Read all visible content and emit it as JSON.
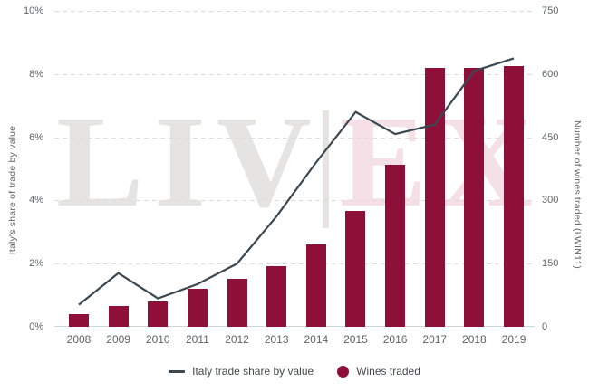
{
  "watermark": {
    "letters": [
      {
        "ch": "L",
        "tone": "gray"
      },
      {
        "ch": "I",
        "tone": "gray"
      },
      {
        "ch": "V",
        "tone": "gray"
      },
      {
        "ch": "|",
        "tone": "separator"
      },
      {
        "ch": "E",
        "tone": "pink"
      },
      {
        "ch": "X",
        "tone": "pink"
      }
    ]
  },
  "legend": {
    "line_label": "Italy trade share by value",
    "bar_label": "Wines traded"
  },
  "chart_data": {
    "type": "combo",
    "categories": [
      "2008",
      "2009",
      "2010",
      "2011",
      "2012",
      "2013",
      "2014",
      "2015",
      "2016",
      "2017",
      "2018",
      "2019"
    ],
    "series": [
      {
        "name": "Italy trade share by value",
        "type": "line",
        "axis": "left",
        "values": [
          0.7,
          1.7,
          0.9,
          1.35,
          2.0,
          3.5,
          5.2,
          6.8,
          6.1,
          6.4,
          8.1,
          8.5
        ]
      },
      {
        "name": "Wines traded",
        "type": "bar",
        "axis": "right",
        "values": [
          30,
          50,
          60,
          90,
          115,
          145,
          195,
          275,
          385,
          615,
          615,
          620
        ]
      }
    ],
    "left_axis": {
      "label": "Italy's share of trade by value",
      "ticks": [
        "0%",
        "2%",
        "4%",
        "6%",
        "8%",
        "10%"
      ],
      "ylim": [
        0,
        10
      ]
    },
    "right_axis": {
      "label": "Number of wines traded (LWIN11)",
      "ticks": [
        "0",
        "150",
        "300",
        "450",
        "600",
        "750"
      ],
      "ylim": [
        0,
        750
      ]
    },
    "grid": "dashed horizontal",
    "legend_position": "bottom center",
    "colors": {
      "bar": "#8e1038",
      "line": "#3b4852",
      "gridline": "#dcdcdc",
      "axis_line": "#ccd6dc",
      "tick_text": "#5f6468",
      "legend_text": "#45494d",
      "watermark_gray": "#e5e4e3",
      "watermark_pink": "#f4e0e6"
    }
  }
}
